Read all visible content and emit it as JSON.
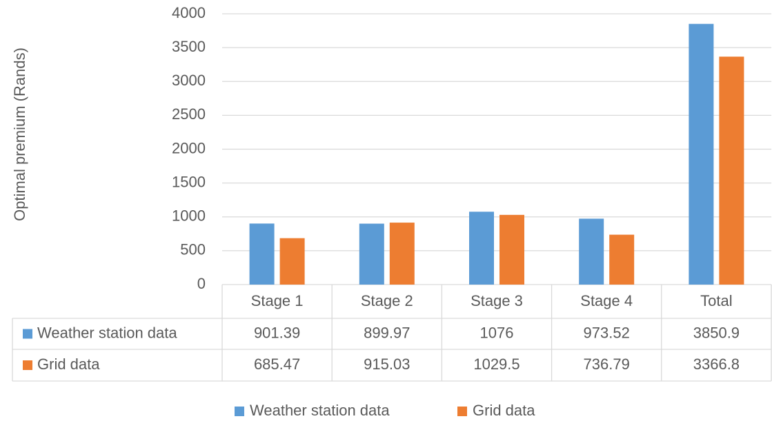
{
  "chart_data": {
    "type": "bar",
    "y_label": "Optimal premium (Rands)",
    "categories": [
      "Stage 1",
      "Stage 2",
      "Stage 3",
      "Stage 4",
      "Total"
    ],
    "series": [
      {
        "name": "Weather station data",
        "color": "#5b9bd5",
        "values": [
          901.39,
          899.97,
          1076,
          973.52,
          3850.9
        ]
      },
      {
        "name": "Grid data",
        "color": "#ed7d31",
        "values": [
          685.47,
          915.03,
          1029.5,
          736.79,
          3366.8
        ]
      }
    ],
    "ylim": [
      0,
      4000
    ],
    "yticks": [
      0,
      500,
      1000,
      1500,
      2000,
      2500,
      3000,
      3500,
      4000
    ],
    "grid": true
  }
}
